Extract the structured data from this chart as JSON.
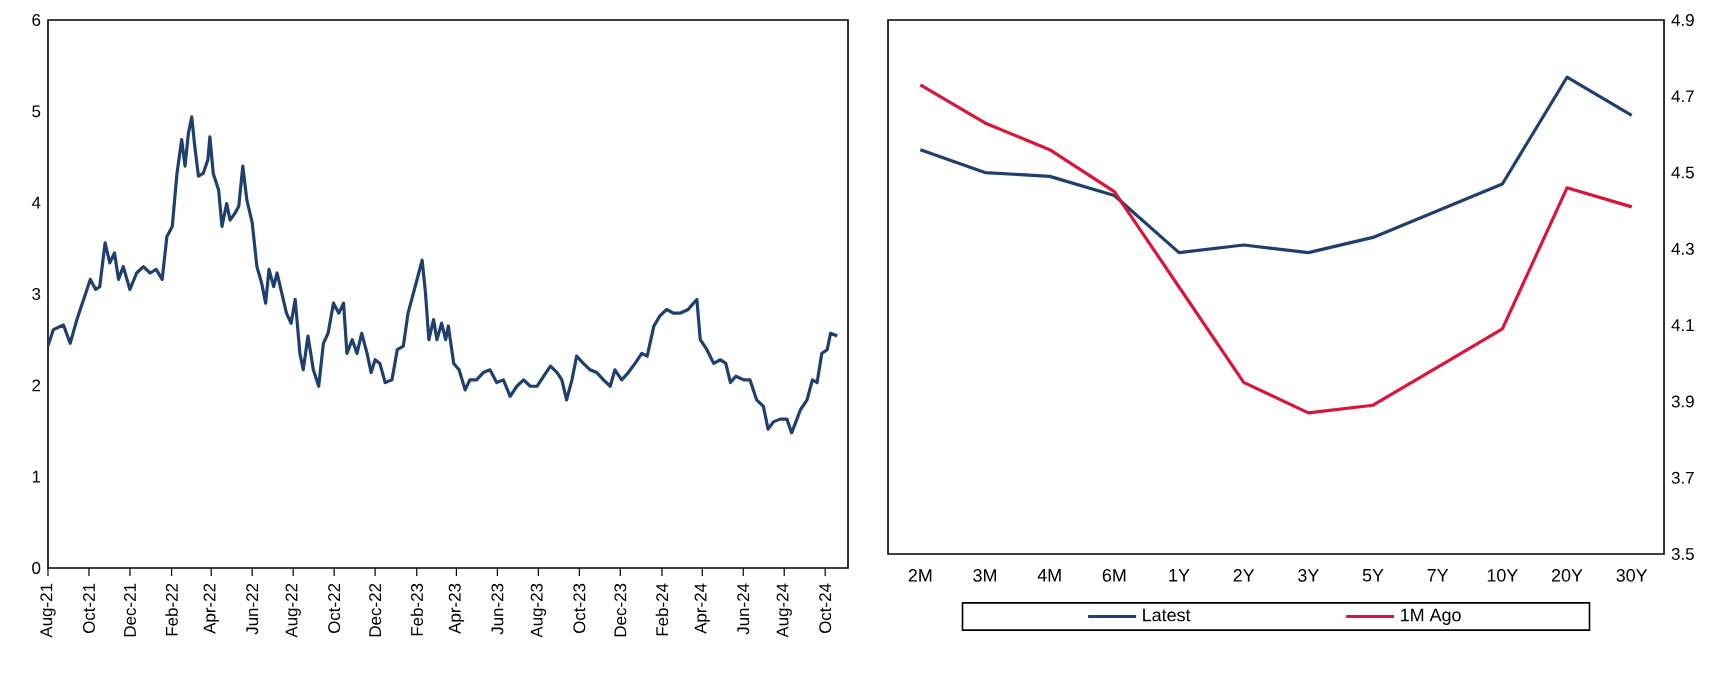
{
  "chart_data": [
    {
      "type": "line",
      "x": [
        "2021-08-01",
        "2021-08-09",
        "2021-08-24",
        "2021-09-03",
        "2021-09-13",
        "2021-09-23",
        "2021-10-03",
        "2021-10-11",
        "2021-10-17",
        "2021-10-25",
        "2021-11-01",
        "2021-11-08",
        "2021-11-14",
        "2021-11-21",
        "2021-12-01",
        "2021-12-11",
        "2021-12-21",
        "2021-12-31",
        "2022-01-09",
        "2022-01-18",
        "2022-01-25",
        "2022-02-02",
        "2022-02-09",
        "2022-02-16",
        "2022-02-21",
        "2022-02-26",
        "2022-03-03",
        "2022-03-07",
        "2022-03-13",
        "2022-03-20",
        "2022-03-27",
        "2022-03-30",
        "2022-04-04",
        "2022-04-12",
        "2022-04-17",
        "2022-04-24",
        "2022-04-29",
        "2022-05-06",
        "2022-05-12",
        "2022-05-18",
        "2022-05-24",
        "2022-06-01",
        "2022-06-08",
        "2022-06-15",
        "2022-06-21",
        "2022-06-26",
        "2022-07-03",
        "2022-07-08",
        "2022-07-15",
        "2022-07-22",
        "2022-07-29",
        "2022-08-04",
        "2022-08-11",
        "2022-08-16",
        "2022-08-23",
        "2022-08-31",
        "2022-09-08",
        "2022-09-15",
        "2022-09-22",
        "2022-09-30",
        "2022-10-08",
        "2022-10-15",
        "2022-10-20",
        "2022-10-28",
        "2022-11-04",
        "2022-11-11",
        "2022-11-19",
        "2022-11-25",
        "2022-12-01",
        "2022-12-08",
        "2022-12-16",
        "2022-12-26",
        "2023-01-03",
        "2023-01-12",
        "2023-01-19",
        "2023-01-27",
        "2023-02-04",
        "2023-02-09",
        "2023-02-14",
        "2023-02-19",
        "2023-02-26",
        "2023-03-03",
        "2023-03-10",
        "2023-03-16",
        "2023-03-20",
        "2023-03-28",
        "2023-04-05",
        "2023-04-14",
        "2023-04-21",
        "2023-05-01",
        "2023-05-11",
        "2023-05-21",
        "2023-05-31",
        "2023-06-10",
        "2023-06-20",
        "2023-06-30",
        "2023-07-10",
        "2023-07-20",
        "2023-07-30",
        "2023-08-09",
        "2023-08-19",
        "2023-08-29",
        "2023-09-05",
        "2023-09-12",
        "2023-09-20",
        "2023-09-27",
        "2023-10-07",
        "2023-10-17",
        "2023-10-27",
        "2023-11-06",
        "2023-11-16",
        "2023-11-23",
        "2023-12-03",
        "2023-12-13",
        "2023-12-23",
        "2024-01-02",
        "2024-01-10",
        "2024-01-20",
        "2024-01-29",
        "2024-02-08",
        "2024-02-18",
        "2024-02-28",
        "2024-03-11",
        "2024-03-19",
        "2024-03-24",
        "2024-03-29",
        "2024-04-08",
        "2024-04-18",
        "2024-04-28",
        "2024-05-06",
        "2024-05-13",
        "2024-05-21",
        "2024-06-02",
        "2024-06-11",
        "2024-06-21",
        "2024-07-01",
        "2024-07-08",
        "2024-07-16",
        "2024-07-26",
        "2024-08-05",
        "2024-08-12",
        "2024-08-20",
        "2024-08-25",
        "2024-09-04",
        "2024-09-12",
        "2024-09-19",
        "2024-09-26",
        "2024-10-04",
        "2024-10-09",
        "2024-10-19"
      ],
      "series": [
        {
          "color": "#1f3f6e",
          "values": [
            2.43,
            2.61,
            2.66,
            2.46,
            2.72,
            2.94,
            3.16,
            3.05,
            3.08,
            3.56,
            3.34,
            3.45,
            3.16,
            3.3,
            3.05,
            3.23,
            3.3,
            3.23,
            3.27,
            3.16,
            3.63,
            3.74,
            4.32,
            4.69,
            4.4,
            4.76,
            4.94,
            4.65,
            4.29,
            4.32,
            4.47,
            4.72,
            4.32,
            4.14,
            3.74,
            3.99,
            3.81,
            3.88,
            3.96,
            4.4,
            4.03,
            3.78,
            3.3,
            3.12,
            2.9,
            3.27,
            3.08,
            3.23,
            3.01,
            2.79,
            2.68,
            2.94,
            2.35,
            2.17,
            2.54,
            2.17,
            1.99,
            2.46,
            2.57,
            2.9,
            2.79,
            2.9,
            2.35,
            2.5,
            2.35,
            2.57,
            2.35,
            2.14,
            2.28,
            2.24,
            2.03,
            2.06,
            2.39,
            2.43,
            2.79,
            3.01,
            3.23,
            3.37,
            3.01,
            2.5,
            2.72,
            2.5,
            2.68,
            2.5,
            2.65,
            2.24,
            2.17,
            1.95,
            2.06,
            2.06,
            2.14,
            2.17,
            2.03,
            2.06,
            1.88,
            1.99,
            2.06,
            1.99,
            1.99,
            2.1,
            2.21,
            2.14,
            2.06,
            1.84,
            2.06,
            2.32,
            2.24,
            2.17,
            2.14,
            2.06,
            1.99,
            2.17,
            2.06,
            2.14,
            2.24,
            2.35,
            2.32,
            2.65,
            2.76,
            2.83,
            2.79,
            2.79,
            2.83,
            2.9,
            2.94,
            2.5,
            2.39,
            2.24,
            2.28,
            2.24,
            2.03,
            2.1,
            2.06,
            2.06,
            1.84,
            1.77,
            1.52,
            1.6,
            1.63,
            1.63,
            1.48,
            1.63,
            1.73,
            1.84,
            2.06,
            2.03,
            2.35,
            2.39,
            2.57,
            2.54
          ]
        }
      ],
      "xlim": [
        "2021-08-01",
        "2024-11-04"
      ],
      "xticks": [
        {
          "value": "2021-08-01",
          "label": "Aug-21"
        },
        {
          "value": "2021-10-01",
          "label": "Oct-21"
        },
        {
          "value": "2021-12-01",
          "label": "Dec-21"
        },
        {
          "value": "2022-02-01",
          "label": "Feb-22"
        },
        {
          "value": "2022-04-01",
          "label": "Apr-22"
        },
        {
          "value": "2022-06-01",
          "label": "Jun-22"
        },
        {
          "value": "2022-08-01",
          "label": "Aug-22"
        },
        {
          "value": "2022-10-01",
          "label": "Oct-22"
        },
        {
          "value": "2022-12-01",
          "label": "Dec-22"
        },
        {
          "value": "2023-02-01",
          "label": "Feb-23"
        },
        {
          "value": "2023-04-01",
          "label": "Apr-23"
        },
        {
          "value": "2023-06-01",
          "label": "Jun-23"
        },
        {
          "value": "2023-08-01",
          "label": "Aug-23"
        },
        {
          "value": "2023-10-01",
          "label": "Oct-23"
        },
        {
          "value": "2023-12-01",
          "label": "Dec-23"
        },
        {
          "value": "2024-02-01",
          "label": "Feb-24"
        },
        {
          "value": "2024-04-01",
          "label": "Apr-24"
        },
        {
          "value": "2024-06-01",
          "label": "Jun-24"
        },
        {
          "value": "2024-08-01",
          "label": "Aug-24"
        },
        {
          "value": "2024-10-01",
          "label": "Oct-24"
        }
      ],
      "ylim": [
        0,
        6
      ],
      "yticks": [
        0,
        1,
        2,
        3,
        4,
        5,
        6
      ]
    },
    {
      "type": "line",
      "categories": [
        "2M",
        "3M",
        "4M",
        "6M",
        "1Y",
        "2Y",
        "3Y",
        "5Y",
        "7Y",
        "10Y",
        "20Y",
        "30Y"
      ],
      "series": [
        {
          "name": "Latest",
          "color": "#1f3f6e",
          "values": [
            4.56,
            4.5,
            4.49,
            4.44,
            4.29,
            4.31,
            4.29,
            4.33,
            4.4,
            4.47,
            4.75,
            4.65
          ]
        },
        {
          "name": "1M Ago",
          "color": "#d9163a",
          "values": [
            4.73,
            4.63,
            4.56,
            4.45,
            4.2,
            3.95,
            3.87,
            3.89,
            3.99,
            4.09,
            4.46,
            4.41
          ]
        }
      ],
      "ylim": [
        3.5,
        4.9
      ],
      "yticks": [
        {
          "value": 3.5,
          "label": "3.5"
        },
        {
          "value": 3.7,
          "label": "3.7"
        },
        {
          "value": 3.9,
          "label": "3.9"
        },
        {
          "value": 4.1,
          "label": "4.1"
        },
        {
          "value": 4.3,
          "label": "4.3"
        },
        {
          "value": 4.5,
          "label": "4.5"
        },
        {
          "value": 4.7,
          "label": "4.7"
        },
        {
          "value": 4.9,
          "label": "4.9"
        }
      ],
      "legend": "bottom"
    }
  ]
}
